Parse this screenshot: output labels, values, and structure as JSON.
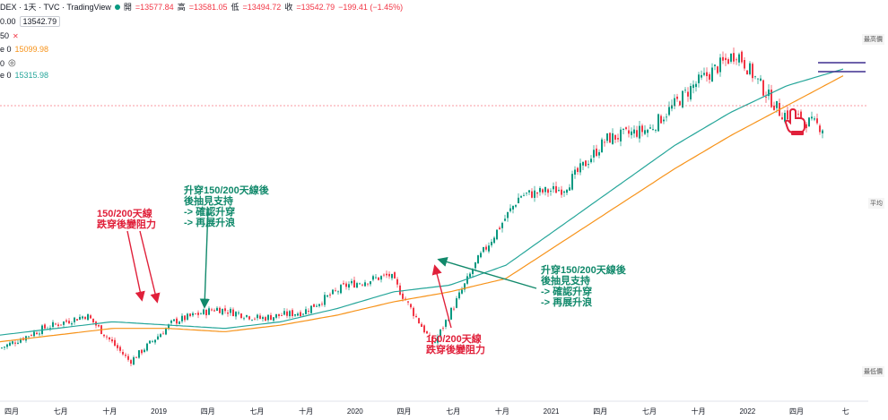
{
  "header": {
    "symbol": "DEX · 1天 · TVC · TradingView",
    "ohlc": [
      {
        "label": "開",
        "value": "=13577.84"
      },
      {
        "label": "高",
        "value": "=13581.05"
      },
      {
        "label": "低",
        "value": "=13494.72"
      },
      {
        "label": "收",
        "value": "=13542.79"
      },
      {
        "label": "",
        "value": "−199.41 (−1.45%)"
      }
    ],
    "last_price_box": "13542.79",
    "row_000": "0.00",
    "row_50": "50",
    "ma1_prefix": "e 0",
    "ma1_value": "15099.98",
    "ma2_prefix": "e 0",
    "ma2_value": "15315.98",
    "vis_prefix": "0"
  },
  "right_tags": {
    "top": "最高價",
    "mid": "平均",
    "bottom": "最低價"
  },
  "annotations": {
    "left_red": "150/200天線\n跌穿後變阻力",
    "left_green": "升穿150/200天線後\n後抽見支持\n-> 確認升穿\n-> 再展升浪",
    "right_green": "升穿150/200天線後\n後抽見支持\n-> 確認升穿\n-> 再展升浪",
    "bottom_red": "150/200天線\n跌穿後變阻力"
  },
  "colors": {
    "up": "#089981",
    "down": "#f23645",
    "ma150": "#26a69a",
    "ma200": "#f7931a",
    "arrow_red": "#e0203a",
    "arrow_green": "#11896b",
    "hline": "#3f2f8f",
    "hand": "#e0203a"
  },
  "chart_data": {
    "type": "candlestick",
    "symbol": "DEX",
    "xlabels": [
      "四月",
      "七月",
      "十月",
      "2019",
      "四月",
      "七月",
      "十月",
      "2020",
      "四月",
      "七月",
      "十月",
      "2021",
      "四月",
      "七月",
      "十月",
      "2022",
      "四月",
      "七"
    ],
    "series": [
      {
        "name": "150",
        "color": "#26a69a",
        "values": [
          7300,
          7500,
          7700,
          7600,
          7500,
          7700,
          8100,
          8600,
          8800,
          9400,
          10600,
          11800,
          13000,
          14000,
          14800,
          15300
        ]
      },
      {
        "name": "200",
        "color": "#f7931a",
        "values": [
          7100,
          7300,
          7500,
          7500,
          7400,
          7600,
          7900,
          8300,
          8600,
          9000,
          10100,
          11200,
          12300,
          13300,
          14200,
          15100
        ]
      }
    ],
    "close_path": [
      6900,
      7500,
      7900,
      6500,
      7700,
      8100,
      7800,
      8000,
      8800,
      9100,
      7000,
      9500,
      11500,
      11700,
      13200,
      13500,
      14800,
      15800,
      14000,
      13542.79
    ],
    "last_close": 13542.79
  }
}
